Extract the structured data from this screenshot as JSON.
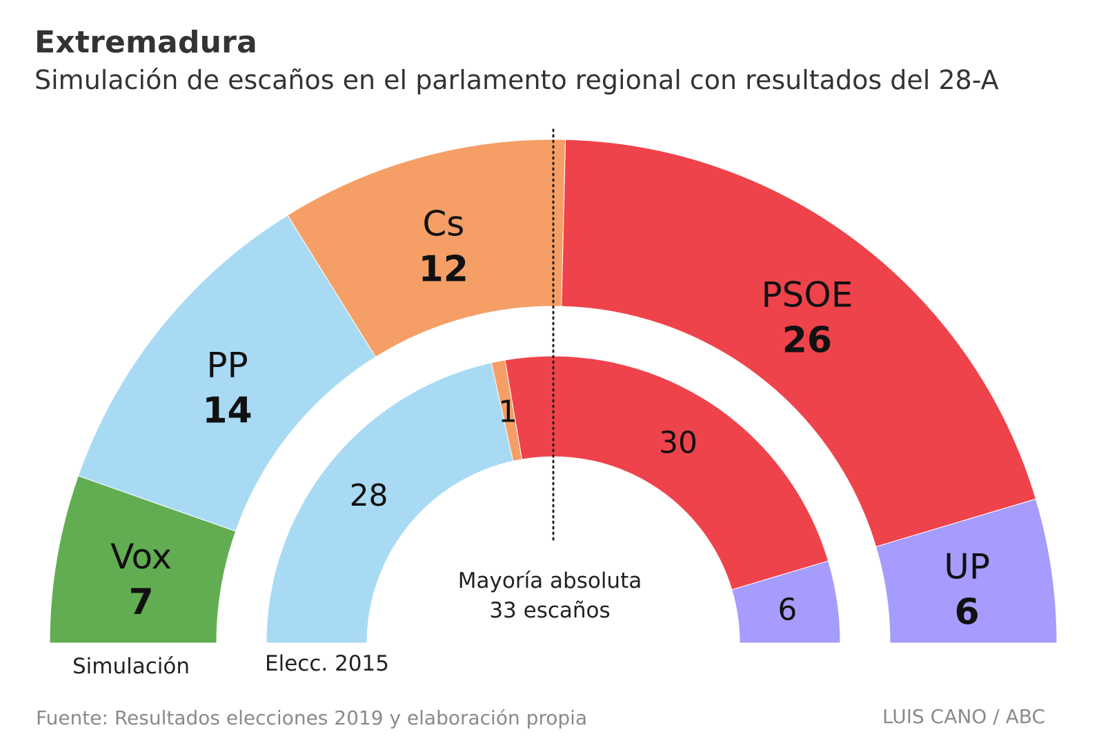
{
  "header": {
    "title": "Extremadura",
    "subtitle": "Simulación de escaños en el parlamento regional con resultados del 28-A"
  },
  "footer": {
    "source": "Fuente: Resultados elecciones 2019 y elaboración propia",
    "credit": "LUIS CANO / ABC"
  },
  "chart_data": {
    "type": "pie",
    "variant": "parliament-hemicycle",
    "total_seats": 65,
    "majority": {
      "line1": "Mayoría absoluta",
      "line2": "33 escaños",
      "seats": 33
    },
    "rings": [
      {
        "name": "Simulación",
        "segments": [
          {
            "party": "Vox",
            "seats": 7,
            "color": "#62ad52"
          },
          {
            "party": "PP",
            "seats": 14,
            "color": "#a8daf4"
          },
          {
            "party": "Cs",
            "seats": 12,
            "color": "#f59f67"
          },
          {
            "party": "PSOE",
            "seats": 26,
            "color": "#ef434b"
          },
          {
            "party": "UP",
            "seats": 6,
            "color": "#a59cfd"
          }
        ]
      },
      {
        "name": "Elecc. 2015",
        "segments": [
          {
            "party": "PP",
            "seats": 28,
            "color": "#a8daf4"
          },
          {
            "party": "Cs",
            "seats": 1,
            "color": "#f59f67"
          },
          {
            "party": "PSOE",
            "seats": 30,
            "color": "#ef434b"
          },
          {
            "party": "UP",
            "seats": 6,
            "color": "#a59cfd"
          }
        ]
      }
    ],
    "colors": {
      "Vox": "#62ad52",
      "PP": "#a8daf4",
      "Cs": "#f59f67",
      "PSOE": "#ef434b",
      "UP": "#a59cfd"
    }
  }
}
